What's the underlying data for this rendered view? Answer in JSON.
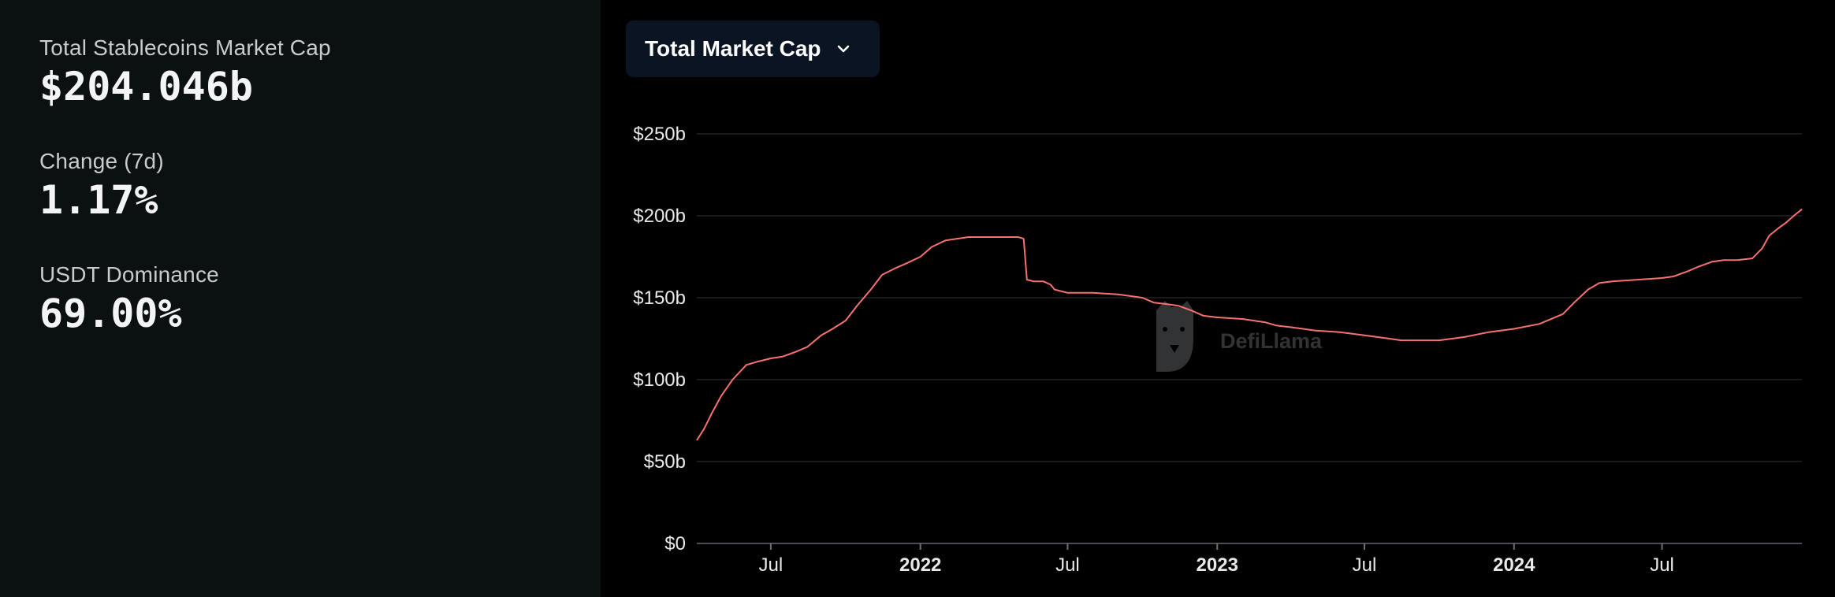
{
  "stats": [
    {
      "label": "Total Stablecoins Market Cap",
      "value": "$204.046b"
    },
    {
      "label": "Change (7d)",
      "value": "1.17%"
    },
    {
      "label": "USDT Dominance",
      "value": "69.00%"
    }
  ],
  "dropdown": {
    "label": "Total Market Cap",
    "icon": "chevron-down-icon"
  },
  "watermark": {
    "text": "DefiLlama",
    "icon": "llama-logo-icon"
  },
  "colors": {
    "line": "#f87171",
    "left_panel": "#0b1011",
    "grid": "#1f2326"
  },
  "chart_data": {
    "type": "line",
    "title": "",
    "xlabel": "",
    "ylabel": "",
    "ylim": [
      0,
      250
    ],
    "y_ticks": [
      "$0",
      "$50b",
      "$100b",
      "$150b",
      "$200b",
      "$250b"
    ],
    "x_ticks": [
      {
        "label": "Jul",
        "date": "2021-07-01",
        "year": false
      },
      {
        "label": "2022",
        "date": "2022-01-01",
        "year": true
      },
      {
        "label": "Jul",
        "date": "2022-07-01",
        "year": false
      },
      {
        "label": "2023",
        "date": "2023-01-01",
        "year": true
      },
      {
        "label": "Jul",
        "date": "2023-07-01",
        "year": false
      },
      {
        "label": "2024",
        "date": "2024-01-01",
        "year": true
      },
      {
        "label": "Jul",
        "date": "2024-07-01",
        "year": false
      }
    ],
    "xlim": [
      "2021-04-01",
      "2024-12-20"
    ],
    "grid": true,
    "series": [
      {
        "values": [
          [
            "2021-04-01",
            63
          ],
          [
            "2021-04-10",
            70
          ],
          [
            "2021-04-20",
            80
          ],
          [
            "2021-05-01",
            90
          ],
          [
            "2021-05-15",
            100
          ],
          [
            "2021-06-01",
            109
          ],
          [
            "2021-06-15",
            111
          ],
          [
            "2021-07-01",
            113
          ],
          [
            "2021-07-15",
            114
          ],
          [
            "2021-08-01",
            117
          ],
          [
            "2021-08-15",
            120
          ],
          [
            "2021-09-01",
            127
          ],
          [
            "2021-09-15",
            131
          ],
          [
            "2021-10-01",
            136
          ],
          [
            "2021-10-15",
            145
          ],
          [
            "2021-11-01",
            155
          ],
          [
            "2021-11-15",
            164
          ],
          [
            "2021-12-01",
            168
          ],
          [
            "2021-12-15",
            171
          ],
          [
            "2022-01-01",
            175
          ],
          [
            "2022-01-15",
            181
          ],
          [
            "2022-02-01",
            185
          ],
          [
            "2022-02-15",
            186
          ],
          [
            "2022-03-01",
            187
          ],
          [
            "2022-03-15",
            187
          ],
          [
            "2022-04-01",
            187
          ],
          [
            "2022-04-15",
            187
          ],
          [
            "2022-05-01",
            187
          ],
          [
            "2022-05-08",
            186
          ],
          [
            "2022-05-12",
            161
          ],
          [
            "2022-05-20",
            160
          ],
          [
            "2022-06-01",
            160
          ],
          [
            "2022-06-10",
            158
          ],
          [
            "2022-06-15",
            155
          ],
          [
            "2022-07-01",
            153
          ],
          [
            "2022-08-01",
            153
          ],
          [
            "2022-09-01",
            152
          ],
          [
            "2022-10-01",
            150
          ],
          [
            "2022-10-15",
            147
          ],
          [
            "2022-11-01",
            146
          ],
          [
            "2022-11-15",
            145
          ],
          [
            "2022-12-01",
            142
          ],
          [
            "2022-12-15",
            139
          ],
          [
            "2023-01-01",
            138
          ],
          [
            "2023-02-01",
            137
          ],
          [
            "2023-03-01",
            135
          ],
          [
            "2023-03-15",
            133
          ],
          [
            "2023-04-01",
            132
          ],
          [
            "2023-05-01",
            130
          ],
          [
            "2023-06-01",
            129
          ],
          [
            "2023-07-01",
            127
          ],
          [
            "2023-08-01",
            125
          ],
          [
            "2023-08-15",
            124
          ],
          [
            "2023-09-01",
            124
          ],
          [
            "2023-10-01",
            124
          ],
          [
            "2023-11-01",
            126
          ],
          [
            "2023-12-01",
            129
          ],
          [
            "2024-01-01",
            131
          ],
          [
            "2024-02-01",
            134
          ],
          [
            "2024-03-01",
            140
          ],
          [
            "2024-03-15",
            147
          ],
          [
            "2024-04-01",
            155
          ],
          [
            "2024-04-15",
            159
          ],
          [
            "2024-05-01",
            160
          ],
          [
            "2024-06-01",
            161
          ],
          [
            "2024-07-01",
            162
          ],
          [
            "2024-07-15",
            163
          ],
          [
            "2024-08-01",
            166
          ],
          [
            "2024-08-15",
            169
          ],
          [
            "2024-09-01",
            172
          ],
          [
            "2024-09-15",
            173
          ],
          [
            "2024-10-01",
            173
          ],
          [
            "2024-10-20",
            174
          ],
          [
            "2024-11-01",
            180
          ],
          [
            "2024-11-10",
            188
          ],
          [
            "2024-11-20",
            192
          ],
          [
            "2024-12-01",
            196
          ],
          [
            "2024-12-10",
            200
          ],
          [
            "2024-12-20",
            204
          ]
        ]
      }
    ]
  }
}
